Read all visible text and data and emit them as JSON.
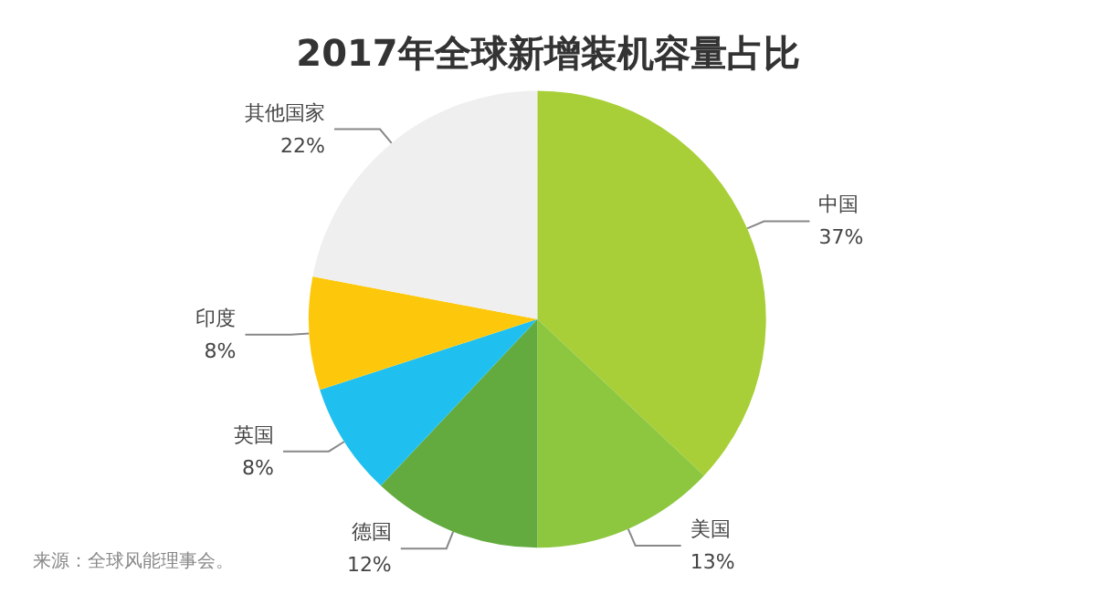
{
  "chart_data": {
    "type": "pie",
    "title": "2017年全球新增装机容量占比",
    "categories": [
      "中国",
      "美国",
      "德国",
      "英国",
      "印度",
      "其他国家"
    ],
    "values": [
      37,
      13,
      12,
      8,
      8,
      22
    ],
    "value_labels": [
      "37%",
      "13%",
      "12%",
      "8%",
      "8%",
      "22%"
    ],
    "colors": [
      "#a8cf38",
      "#8dc63f",
      "#63ab3f",
      "#1fc0ef",
      "#fdc80c",
      "#efeff0"
    ],
    "annotations": [
      "来源：全球风能理事会。"
    ],
    "legend": false
  }
}
